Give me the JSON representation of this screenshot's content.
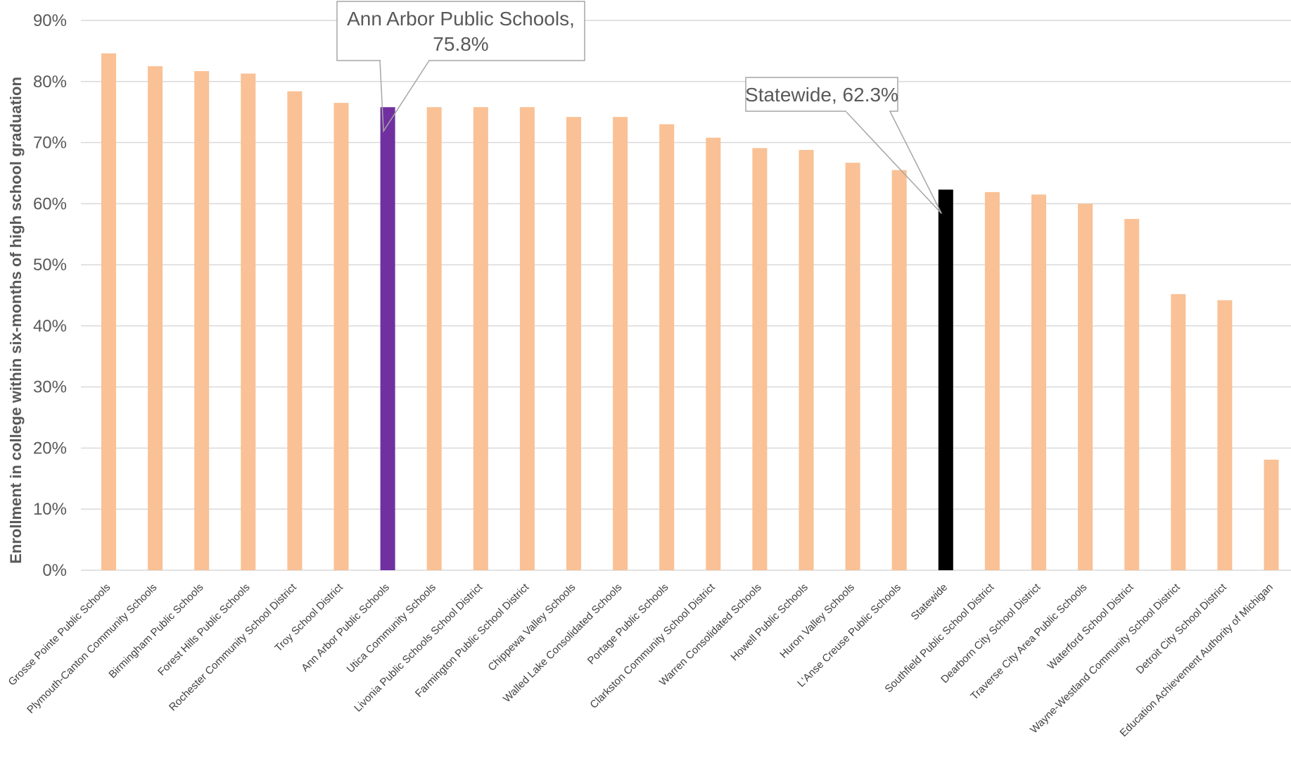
{
  "chart_data": {
    "type": "bar",
    "title": "",
    "xlabel": "",
    "ylabel": "Enrollment in college within six-months of high school graduation",
    "ylim": [
      0,
      90
    ],
    "y_tick_step": 10,
    "y_tick_format": "percent",
    "grid": true,
    "legend": "none",
    "colors": {
      "default": "#f9c195",
      "highlight": "#7030a0",
      "statewide": "#000000",
      "gridline": "#d9d9d9",
      "axis_text": "#595959"
    },
    "categories": [
      "Grosse Pointe Public Schools",
      "Plymouth-Canton Community Schools",
      "Birmingham Public Schools",
      "Forest Hills Public Schools",
      "Rochester Community School District",
      "Troy School District",
      "Ann Arbor Public Schools",
      "Utica Community Schools",
      "Livonia Public Schools School District",
      "Farmington Public School District",
      "Chippewa Valley Schools",
      "Walled Lake Consolidated Schools",
      "Portage Public Schools",
      "Clarkston Community School District",
      "Warren Consolidated Schools",
      "Howell Public Schools",
      "Huron Valley Schools",
      "L'Anse Creuse Public Schools",
      "Statewide",
      "Southfield Public School District",
      "Dearborn City School District",
      "Traverse City Area Public Schools",
      "Waterford School District",
      "Wayne-Westland Community School District",
      "Detroit City School District",
      "Education Achievement Authority of Michigan"
    ],
    "values": [
      84.6,
      82.5,
      81.7,
      81.3,
      78.4,
      76.5,
      75.8,
      75.8,
      75.8,
      75.8,
      74.2,
      74.2,
      73.0,
      70.8,
      69.1,
      68.8,
      66.7,
      65.5,
      62.3,
      61.9,
      61.5,
      60.0,
      57.5,
      45.2,
      44.2,
      18.1
    ],
    "highlight": {
      "Ann Arbor Public Schools": "highlight",
      "Statewide": "statewide"
    },
    "annotations": [
      {
        "category": "Ann Arbor Public Schools",
        "lines": [
          "Ann Arbor Public Schools,",
          "75.8%"
        ]
      },
      {
        "category": "Statewide",
        "lines": [
          "Statewide, 62.3%"
        ]
      }
    ]
  }
}
